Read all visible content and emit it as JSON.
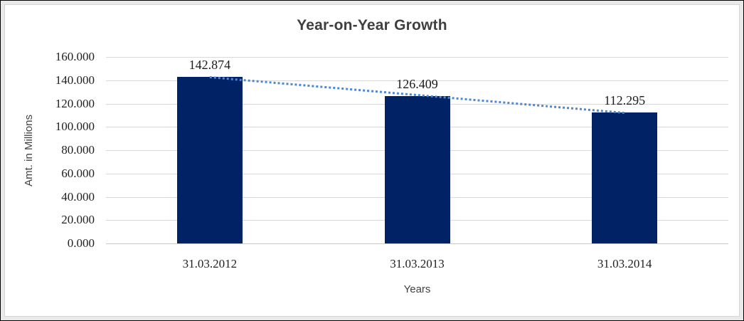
{
  "chart_data": {
    "type": "bar",
    "title": "Year-on-Year Growth",
    "xlabel": "Years",
    "ylabel": "Amt. in Millions",
    "categories": [
      "31.03.2012",
      "31.03.2013",
      "31.03.2014"
    ],
    "values": [
      142.874,
      126.409,
      112.295
    ],
    "value_labels": [
      "142.874",
      "126.409",
      "112.295"
    ],
    "y_ticks": [
      "0.000",
      "20.000",
      "40.000",
      "60.000",
      "80.000",
      "100.000",
      "120.000",
      "140.000",
      "160.000"
    ],
    "ylim": [
      0,
      160
    ],
    "grid": true,
    "legend": "none",
    "bar_color": "#012366",
    "trendline": {
      "type": "linear",
      "style": "dotted",
      "color": "#4e87d5",
      "start_value": 142.5,
      "end_value": 111.9
    },
    "colors": {
      "gridline": "#d9d9d9",
      "axis_line": "#c9c9c9",
      "title_text": "#3f3f3f",
      "tick_text": "#212121",
      "axis_title_text": "#424242",
      "frame_band": "#e9e9e9"
    }
  }
}
